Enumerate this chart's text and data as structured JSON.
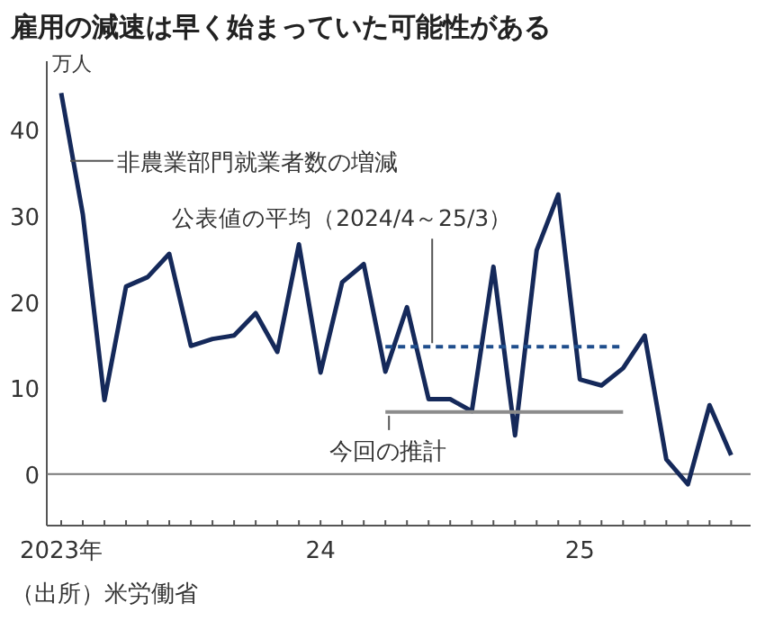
{
  "chart_data": {
    "type": "line",
    "title": "雇用の減速は早く始まっていた可能性がある",
    "ylabel": "万人",
    "x": [
      "2023-01",
      "2023-02",
      "2023-03",
      "2023-04",
      "2023-05",
      "2023-06",
      "2023-07",
      "2023-08",
      "2023-09",
      "2023-10",
      "2023-11",
      "2023-12",
      "2024-01",
      "2024-02",
      "2024-03",
      "2024-04",
      "2024-05",
      "2024-06",
      "2024-07",
      "2024-08",
      "2024-09",
      "2024-10",
      "2024-11",
      "2024-12",
      "2025-01",
      "2025-02",
      "2025-03",
      "2025-04",
      "2025-05",
      "2025-06",
      "2025-07",
      "2025-08"
    ],
    "series": [
      {
        "name": "非農業部門就業者数の増減",
        "color": "#15295a",
        "values": [
          44.3,
          30.2,
          8.6,
          21.8,
          22.9,
          25.6,
          14.9,
          15.7,
          16.1,
          18.7,
          14.2,
          26.7,
          11.8,
          22.3,
          24.4,
          11.9,
          19.4,
          8.7,
          8.7,
          7.3,
          24.1,
          4.5,
          26.0,
          32.5,
          11.0,
          10.3,
          12.3,
          16.1,
          1.7,
          -1.2,
          8.0,
          2.2
        ]
      },
      {
        "name": "公表値の平均（2024/4～25/3）",
        "color": "#1f4e8c",
        "line_style": "dashed",
        "x": [
          "2024-04",
          "2025-03"
        ],
        "values": [
          14.8,
          14.8
        ]
      },
      {
        "name": "今回の推計",
        "color": "#8c8c8c",
        "x": [
          "2024-04",
          "2025-03"
        ],
        "values": [
          7.2,
          7.2
        ]
      }
    ],
    "ylim": [
      -6,
      48
    ],
    "yticks": [
      0,
      10,
      20,
      30,
      40
    ],
    "xlim": [
      "2022-12-11",
      "2025-08-28"
    ],
    "xticks": [
      {
        "value": "2023-01",
        "label": "2023年"
      },
      {
        "value": "2023-02",
        "label": null
      },
      {
        "value": "2023-03",
        "label": null
      },
      {
        "value": "2023-04",
        "label": null
      },
      {
        "value": "2023-05",
        "label": null
      },
      {
        "value": "2023-06",
        "label": null
      },
      {
        "value": "2023-07",
        "label": null
      },
      {
        "value": "2023-08",
        "label": null
      },
      {
        "value": "2023-09",
        "label": null
      },
      {
        "value": "2023-10",
        "label": null
      },
      {
        "value": "2023-11",
        "label": null
      },
      {
        "value": "2023-12",
        "label": null
      },
      {
        "value": "2024-01",
        "label": "24"
      },
      {
        "value": "2024-02",
        "label": null
      },
      {
        "value": "2024-03",
        "label": null
      },
      {
        "value": "2024-04",
        "label": null
      },
      {
        "value": "2024-05",
        "label": null
      },
      {
        "value": "2024-06",
        "label": null
      },
      {
        "value": "2024-07",
        "label": null
      },
      {
        "value": "2024-08",
        "label": null
      },
      {
        "value": "2024-09",
        "label": null
      },
      {
        "value": "2024-10",
        "label": null
      },
      {
        "value": "2024-11",
        "label": null
      },
      {
        "value": "2024-12",
        "label": null
      },
      {
        "value": "2025-01",
        "label": "25"
      },
      {
        "value": "2025-02",
        "label": null
      },
      {
        "value": "2025-03",
        "label": null
      },
      {
        "value": "2025-04",
        "label": null
      },
      {
        "value": "2025-05",
        "label": null
      },
      {
        "value": "2025-06",
        "label": null
      },
      {
        "value": "2025-07",
        "label": null
      },
      {
        "value": "2025-08",
        "label": null
      }
    ],
    "ref_lines": [
      {
        "axis": "y",
        "value": 0,
        "color": "#777777"
      }
    ],
    "annotations": [
      "（出所）米労働省"
    ],
    "legend": false,
    "grid": false
  }
}
